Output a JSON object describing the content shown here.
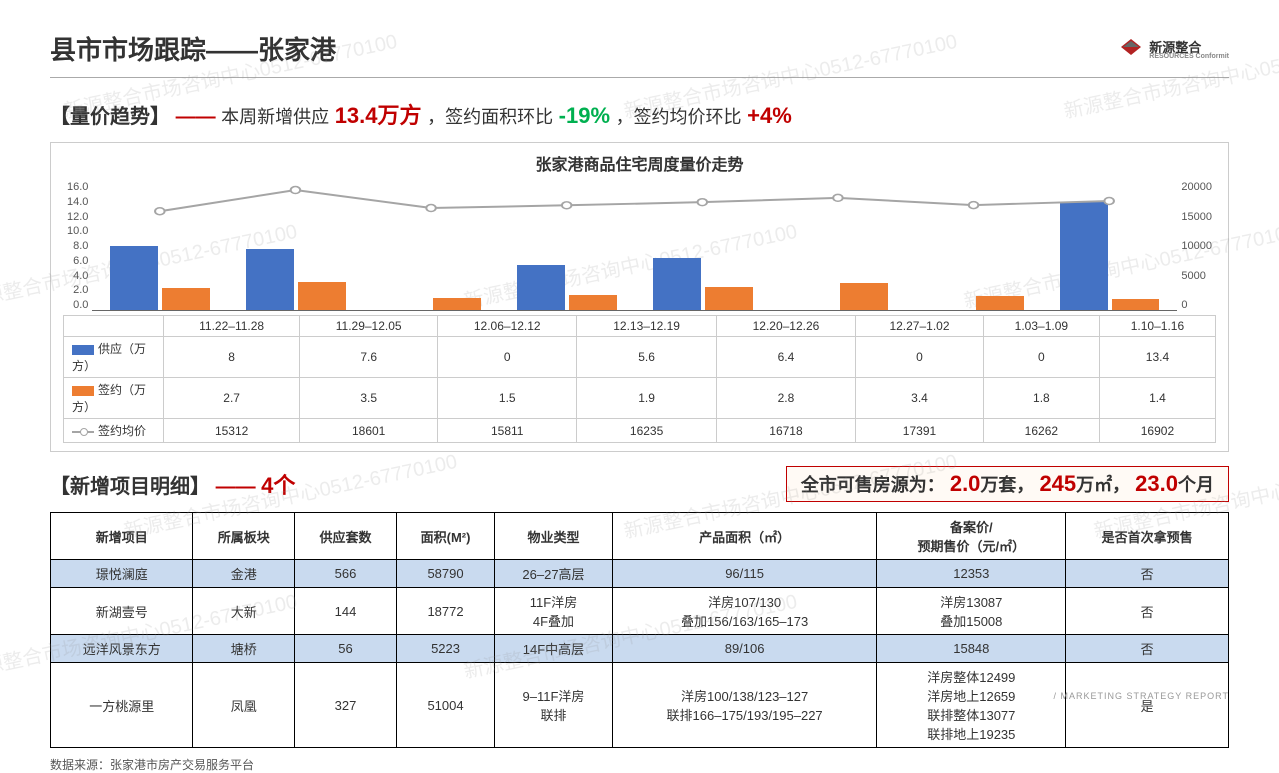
{
  "watermark_text": "新源整合市场咨询中心0512-67770100",
  "logo": {
    "name": "新源整合",
    "sub": "RESOURCES Conformit"
  },
  "title": {
    "prefix": "县市市场跟踪",
    "city": "张家港"
  },
  "trend_headline": {
    "label": "【量价趋势】",
    "dash": "——",
    "part1": "本周新增供应",
    "supply_value": "13.4万方",
    "part2": "，签约面积环比",
    "sign_pct": "-19%",
    "part3": "，签约均价环比",
    "price_pct": "+4%"
  },
  "chart": {
    "title": "张家港商品住宅周度量价走势",
    "left_axis_max": 16.0,
    "left_ticks": [
      "16.0",
      "14.0",
      "12.0",
      "10.0",
      "8.0",
      "6.0",
      "4.0",
      "2.0",
      "0.0"
    ],
    "right_axis_max": 20000,
    "right_ticks": [
      "20000",
      "15000",
      "10000",
      "5000",
      "0"
    ],
    "categories": [
      "11.22–11.28",
      "11.29–12.05",
      "12.06–12.12",
      "12.13–12.19",
      "12.20–12.26",
      "12.27–1.02",
      "1.03–1.09",
      "1.10–1.16"
    ],
    "series": {
      "supply": {
        "label": "供应（万方）",
        "color": "#4472C4",
        "values": [
          8.0,
          7.6,
          0.0,
          5.6,
          6.4,
          0.0,
          0.0,
          13.4
        ]
      },
      "sign": {
        "label": "签约（万方）",
        "color": "#ED7D31",
        "values": [
          2.7,
          3.5,
          1.5,
          1.9,
          2.8,
          3.4,
          1.8,
          1.4
        ]
      },
      "price": {
        "label": "签约均价",
        "color": "#A5A5A5",
        "values": [
          15312,
          18601,
          15811,
          16235,
          16718,
          17391,
          16262,
          16902
        ]
      }
    }
  },
  "project_section": {
    "label": "【新增项目明细】",
    "dash": "——",
    "count": "4个"
  },
  "summary_box": {
    "prefix": "全市可售房源为：",
    "v1": "2.0",
    "u1": "万套，",
    "v2": "245",
    "u2": "万㎡，",
    "v3": "23.0",
    "u3": "个月"
  },
  "detail_table": {
    "columns": [
      "新增项目",
      "所属板块",
      "供应套数",
      "面积(M²)",
      "物业类型",
      "产品面积（㎡）",
      "备案价/\n预期售价（元/㎡）",
      "是否首次拿预售"
    ],
    "rows": [
      {
        "alt": true,
        "cells": [
          "璟悦澜庭",
          "金港",
          "566",
          "58790",
          "26–27高层",
          "96/115",
          "12353",
          "否"
        ]
      },
      {
        "alt": false,
        "cells": [
          "新湖壹号",
          "大新",
          "144",
          "18772",
          "11F洋房\n4F叠加",
          "洋房107/130\n叠加156/163/165–173",
          "洋房13087\n叠加15008",
          "否"
        ]
      },
      {
        "alt": true,
        "cells": [
          "远洋风景东方",
          "塘桥",
          "56",
          "5223",
          "14F中高层",
          "89/106",
          "15848",
          "否"
        ]
      },
      {
        "alt": false,
        "cells": [
          "一方桃源里",
          "凤凰",
          "327",
          "51004",
          "9–11F洋房\n联排",
          "洋房100/138/123–127\n联排166–175/193/195–227",
          "洋房整体12499\n洋房地上12659\n联排整体13077\n联排地上19235",
          "是"
        ]
      }
    ]
  },
  "data_source": "数据来源：张家港市房产交易服务平台",
  "footer_brand": "/ MARKETING STRATEGY REPORT"
}
